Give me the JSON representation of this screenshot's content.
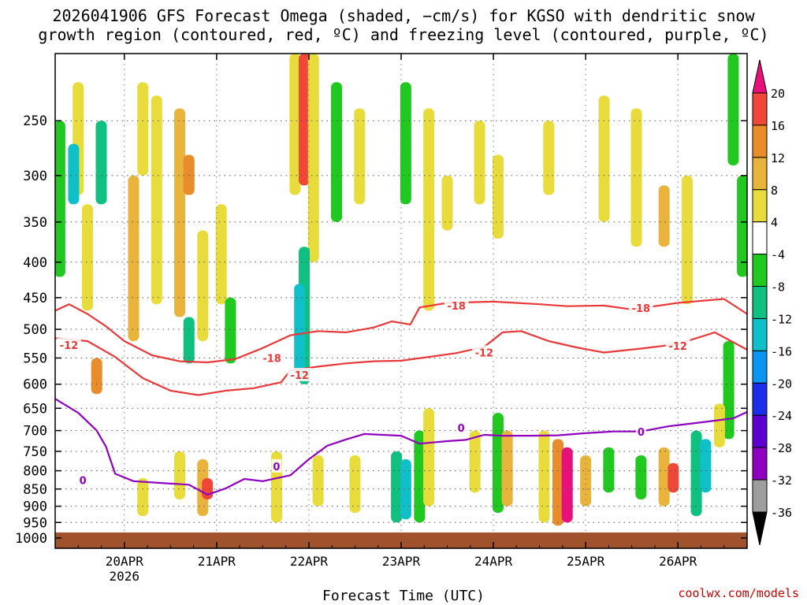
{
  "chart_data": {
    "type": "heatmap",
    "title_line1": "2026041906 GFS Forecast Omega (shaded, −cm/s) for KGSO with dendritic snow",
    "title_line2": "growth region (contoured, red, ºC) and freezing level (contoured, purple, ºC)",
    "xlabel": "Forecast Time (UTC)",
    "ylabel": "",
    "y_scale": "log-pressure",
    "y_ticks": [
      250,
      300,
      350,
      400,
      450,
      500,
      550,
      600,
      650,
      700,
      750,
      800,
      850,
      900,
      950,
      1000
    ],
    "ylim": [
      1000,
      200
    ],
    "x_ticks": [
      {
        "label": "20APR",
        "sub": "2026",
        "day": 20
      },
      {
        "label": "21APR",
        "sub": "",
        "day": 21
      },
      {
        "label": "22APR",
        "sub": "",
        "day": 22
      },
      {
        "label": "23APR",
        "sub": "",
        "day": 23
      },
      {
        "label": "24APR",
        "sub": "",
        "day": 24
      },
      {
        "label": "25APR",
        "sub": "",
        "day": 25
      },
      {
        "label": "26APR",
        "sub": "",
        "day": 26
      }
    ],
    "xlim_days": [
      19.25,
      26.75
    ],
    "grid": true,
    "colorbar": {
      "position": "right",
      "levels": [
        -36,
        -32,
        -28,
        -24,
        -20,
        -16,
        -12,
        -8,
        -4,
        4,
        8,
        12,
        16,
        20
      ],
      "colors": [
        "#000000",
        "#9e9e9e",
        "#8f00bf",
        "#5d00cf",
        "#1b2ee8",
        "#0a96f0",
        "#10c0c8",
        "#10c080",
        "#20c820",
        "#ffffff",
        "#e8dc3c",
        "#e8b43c",
        "#e88c2c",
        "#f04838",
        "#e8107a"
      ]
    },
    "series": [
      {
        "color": "#e83838",
        "label": "-18",
        "label_positions": [
          [
            21.6,
            550
          ],
          [
            23.6,
            462
          ],
          [
            25.6,
            466
          ]
        ],
        "points": [
          [
            19.25,
            470
          ],
          [
            19.4,
            460
          ],
          [
            19.6,
            475
          ],
          [
            19.8,
            495
          ],
          [
            20.0,
            520
          ],
          [
            20.3,
            545
          ],
          [
            20.6,
            556
          ],
          [
            20.9,
            558
          ],
          [
            21.2,
            552
          ],
          [
            21.5,
            532
          ],
          [
            21.8,
            510
          ],
          [
            22.1,
            503
          ],
          [
            22.4,
            505
          ],
          [
            22.7,
            497
          ],
          [
            22.9,
            487
          ],
          [
            23.1,
            492
          ],
          [
            23.2,
            465
          ],
          [
            23.5,
            458
          ],
          [
            24.0,
            456
          ],
          [
            24.5,
            460
          ],
          [
            24.8,
            463
          ],
          [
            25.2,
            462
          ],
          [
            25.5,
            468
          ],
          [
            26.0,
            458
          ],
          [
            26.5,
            452
          ],
          [
            26.75,
            475
          ]
        ]
      },
      {
        "color": "#e83838",
        "label": "-12",
        "label_positions": [
          [
            19.4,
            527
          ],
          [
            21.9,
            582
          ],
          [
            23.9,
            540
          ],
          [
            26.0,
            528
          ]
        ],
        "points": [
          [
            19.25,
            515
          ],
          [
            19.6,
            520
          ],
          [
            19.9,
            548
          ],
          [
            20.2,
            588
          ],
          [
            20.5,
            613
          ],
          [
            20.8,
            622
          ],
          [
            21.1,
            613
          ],
          [
            21.4,
            608
          ],
          [
            21.7,
            596
          ],
          [
            21.8,
            573
          ],
          [
            22.1,
            566
          ],
          [
            22.4,
            560
          ],
          [
            22.7,
            556
          ],
          [
            23.0,
            555
          ],
          [
            23.3,
            548
          ],
          [
            23.6,
            541
          ],
          [
            23.9,
            530
          ],
          [
            24.1,
            505
          ],
          [
            24.3,
            503
          ],
          [
            24.6,
            520
          ],
          [
            24.9,
            531
          ],
          [
            25.2,
            540
          ],
          [
            25.6,
            533
          ],
          [
            26.0,
            525
          ],
          [
            26.4,
            505
          ],
          [
            26.75,
            535
          ]
        ]
      },
      {
        "color": "#8f00bf",
        "label": "0",
        "label_positions": [
          [
            19.55,
            825
          ],
          [
            21.65,
            788
          ],
          [
            23.65,
            693
          ],
          [
            25.6,
            703
          ]
        ],
        "points": [
          [
            19.25,
            630
          ],
          [
            19.5,
            660
          ],
          [
            19.7,
            700
          ],
          [
            19.8,
            738
          ],
          [
            19.9,
            808
          ],
          [
            20.1,
            828
          ],
          [
            20.4,
            833
          ],
          [
            20.7,
            838
          ],
          [
            20.9,
            866
          ],
          [
            21.1,
            848
          ],
          [
            21.3,
            822
          ],
          [
            21.5,
            828
          ],
          [
            21.8,
            812
          ],
          [
            22.0,
            770
          ],
          [
            22.2,
            736
          ],
          [
            22.4,
            721
          ],
          [
            22.6,
            708
          ],
          [
            22.8,
            710
          ],
          [
            23.0,
            712
          ],
          [
            23.2,
            731
          ],
          [
            23.5,
            725
          ],
          [
            23.7,
            722
          ],
          [
            23.9,
            710
          ],
          [
            24.1,
            712
          ],
          [
            24.4,
            712
          ],
          [
            24.7,
            711
          ],
          [
            25.0,
            706
          ],
          [
            25.3,
            702
          ],
          [
            25.6,
            702
          ],
          [
            25.9,
            690
          ],
          [
            26.3,
            680
          ],
          [
            26.6,
            672
          ],
          [
            26.75,
            658
          ]
        ]
      }
    ],
    "omega_cells": [
      {
        "d": 19.5,
        "p0": 220,
        "p1": 320,
        "v": 6
      },
      {
        "d": 19.3,
        "p0": 250,
        "p1": 420,
        "v": -8
      },
      {
        "d": 19.45,
        "p0": 270,
        "p1": 330,
        "v": -14
      },
      {
        "d": 19.75,
        "p0": 250,
        "p1": 330,
        "v": -10
      },
      {
        "d": 19.6,
        "p0": 330,
        "p1": 470,
        "v": 6
      },
      {
        "d": 20.1,
        "p0": 300,
        "p1": 520,
        "v": 10
      },
      {
        "d": 20.35,
        "p0": 230,
        "p1": 460,
        "v": 6
      },
      {
        "d": 20.6,
        "p0": 240,
        "p1": 480,
        "v": 10
      },
      {
        "d": 20.7,
        "p0": 280,
        "p1": 320,
        "v": 15
      },
      {
        "d": 20.2,
        "p0": 220,
        "p1": 300,
        "v": 6
      },
      {
        "d": 19.7,
        "p0": 550,
        "p1": 620,
        "v": 15
      },
      {
        "d": 20.7,
        "p0": 480,
        "p1": 560,
        "v": -10
      },
      {
        "d": 20.85,
        "p0": 360,
        "p1": 520,
        "v": 6
      },
      {
        "d": 21.05,
        "p0": 330,
        "p1": 460,
        "v": 6
      },
      {
        "d": 21.15,
        "p0": 450,
        "p1": 560,
        "v": -8
      },
      {
        "d": 21.85,
        "p0": 200,
        "p1": 320,
        "v": 6
      },
      {
        "d": 21.95,
        "p0": 200,
        "p1": 310,
        "v": 16
      },
      {
        "d": 22.05,
        "p0": 200,
        "p1": 400,
        "v": 6
      },
      {
        "d": 21.95,
        "p0": 380,
        "p1": 600,
        "v": -10
      },
      {
        "d": 21.9,
        "p0": 430,
        "p1": 580,
        "v": -14
      },
      {
        "d": 22.3,
        "p0": 220,
        "p1": 350,
        "v": -8
      },
      {
        "d": 22.55,
        "p0": 240,
        "p1": 330,
        "v": 6
      },
      {
        "d": 23.05,
        "p0": 220,
        "p1": 330,
        "v": -8
      },
      {
        "d": 23.3,
        "p0": 240,
        "p1": 470,
        "v": 6
      },
      {
        "d": 23.5,
        "p0": 300,
        "p1": 360,
        "v": 6
      },
      {
        "d": 23.85,
        "p0": 250,
        "p1": 330,
        "v": 6
      },
      {
        "d": 24.05,
        "p0": 280,
        "p1": 370,
        "v": 6
      },
      {
        "d": 24.6,
        "p0": 250,
        "p1": 320,
        "v": 6
      },
      {
        "d": 25.2,
        "p0": 230,
        "p1": 350,
        "v": 6
      },
      {
        "d": 25.55,
        "p0": 240,
        "p1": 380,
        "v": 6
      },
      {
        "d": 26.1,
        "p0": 300,
        "p1": 460,
        "v": 6
      },
      {
        "d": 25.85,
        "p0": 310,
        "p1": 380,
        "v": 10
      },
      {
        "d": 26.6,
        "p0": 200,
        "p1": 290,
        "v": -8
      },
      {
        "d": 26.7,
        "p0": 300,
        "p1": 420,
        "v": -8
      },
      {
        "d": 22.95,
        "p0": 750,
        "p1": 950,
        "v": -12
      },
      {
        "d": 23.05,
        "p0": 770,
        "p1": 940,
        "v": -16
      },
      {
        "d": 23.2,
        "p0": 700,
        "p1": 950,
        "v": -8
      },
      {
        "d": 23.3,
        "p0": 650,
        "p1": 900,
        "v": 6
      },
      {
        "d": 20.85,
        "p0": 770,
        "p1": 930,
        "v": 10
      },
      {
        "d": 20.9,
        "p0": 820,
        "p1": 880,
        "v": 16
      },
      {
        "d": 20.2,
        "p0": 820,
        "p1": 930,
        "v": 6
      },
      {
        "d": 20.6,
        "p0": 750,
        "p1": 880,
        "v": 6
      },
      {
        "d": 21.65,
        "p0": 750,
        "p1": 950,
        "v": 6
      },
      {
        "d": 22.1,
        "p0": 760,
        "p1": 900,
        "v": 6
      },
      {
        "d": 22.5,
        "p0": 760,
        "p1": 920,
        "v": 6
      },
      {
        "d": 24.05,
        "p0": 660,
        "p1": 920,
        "v": -8
      },
      {
        "d": 24.15,
        "p0": 700,
        "p1": 900,
        "v": 10
      },
      {
        "d": 23.8,
        "p0": 700,
        "p1": 860,
        "v": 6
      },
      {
        "d": 24.55,
        "p0": 700,
        "p1": 950,
        "v": 6
      },
      {
        "d": 24.7,
        "p0": 720,
        "p1": 960,
        "v": 14
      },
      {
        "d": 24.8,
        "p0": 740,
        "p1": 950,
        "v": 20
      },
      {
        "d": 25.0,
        "p0": 760,
        "p1": 900,
        "v": 10
      },
      {
        "d": 25.25,
        "p0": 740,
        "p1": 860,
        "v": -8
      },
      {
        "d": 25.6,
        "p0": 760,
        "p1": 880,
        "v": -8
      },
      {
        "d": 25.85,
        "p0": 740,
        "p1": 900,
        "v": 10
      },
      {
        "d": 25.95,
        "p0": 780,
        "p1": 860,
        "v": 16
      },
      {
        "d": 26.2,
        "p0": 700,
        "p1": 930,
        "v": -10
      },
      {
        "d": 26.3,
        "p0": 720,
        "p1": 860,
        "v": -14
      },
      {
        "d": 26.55,
        "p0": 520,
        "p1": 720,
        "v": -8
      },
      {
        "d": 26.45,
        "p0": 640,
        "p1": 740,
        "v": 6
      }
    ]
  },
  "credit": "coolwx.com/models"
}
